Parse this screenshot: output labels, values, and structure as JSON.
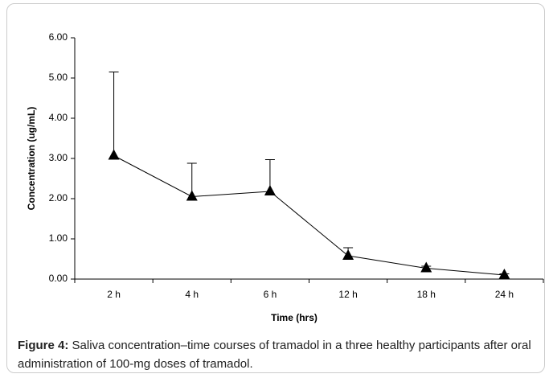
{
  "chart_data": {
    "type": "line",
    "y_label": "Concentration (ug/mL)",
    "x_label": "Time (hrs)",
    "caption_label": "Figure 4:",
    "caption": "Saliva concentration–time courses of tramadol in a three healthy participants after oral administration of 100-mg doses of tramadol.",
    "categories": [
      "2 h",
      "4 h",
      "6 h",
      "12 h",
      "18 h",
      "24 h"
    ],
    "series": [
      {
        "color": "#000000",
        "values": [
          3.07,
          2.05,
          2.18,
          0.58,
          0.27,
          0.1
        ],
        "errors": [
          2.08,
          0.83,
          0.79,
          0.2,
          0.05,
          0.03
        ]
      }
    ],
    "ylim": [
      0,
      6
    ],
    "yticks": [
      {
        "value": 0,
        "label": "0.00"
      },
      {
        "value": 1,
        "label": "1.00"
      },
      {
        "value": 2,
        "label": "2.00"
      },
      {
        "value": 3,
        "label": "3.00"
      },
      {
        "value": 4,
        "label": "4.00"
      },
      {
        "value": 5,
        "label": "5.00"
      },
      {
        "value": 6,
        "label": "6.00"
      }
    ]
  }
}
